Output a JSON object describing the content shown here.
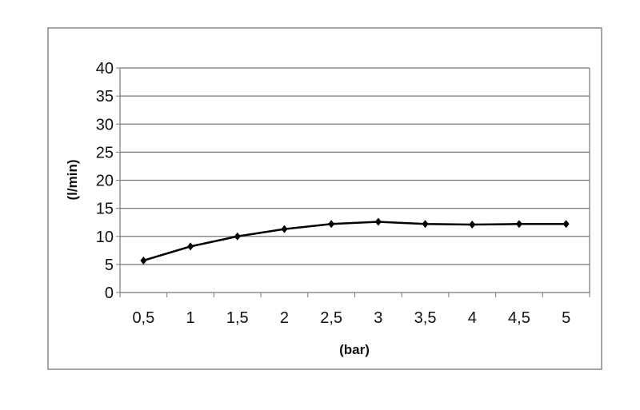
{
  "chart_data": {
    "type": "line",
    "title": "",
    "xlabel": "(bar)",
    "ylabel": "(l/min)",
    "categories": [
      "0,5",
      "1",
      "1,5",
      "2",
      "2,5",
      "3",
      "3,5",
      "4",
      "4,5",
      "5"
    ],
    "series": [
      {
        "values": [
          5.7,
          8.2,
          10.0,
          11.3,
          12.2,
          12.6,
          12.2,
          12.1,
          12.2,
          12.2
        ],
        "color": "#000000"
      }
    ],
    "yticks": [
      "0",
      "5",
      "10",
      "15",
      "20",
      "25",
      "30",
      "35",
      "40"
    ],
    "ylim": [
      0,
      40
    ],
    "grid": true,
    "legend": "none"
  }
}
